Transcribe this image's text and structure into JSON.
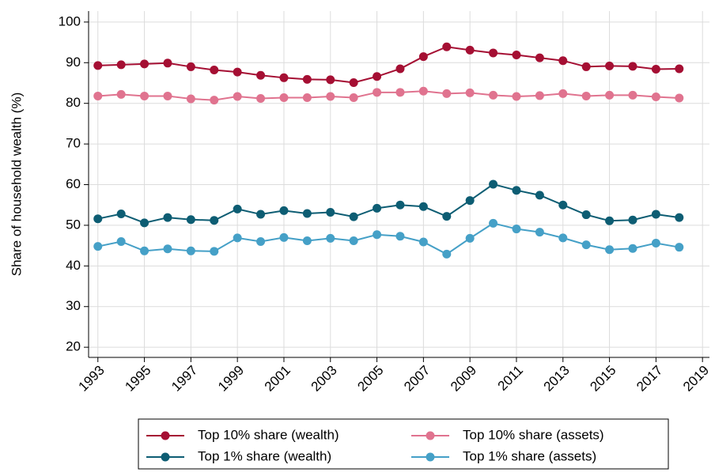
{
  "chart_data": {
    "type": "line",
    "y_label": "Share of household wealth (%)",
    "x": [
      1993,
      1994,
      1995,
      1996,
      1997,
      1998,
      1999,
      2000,
      2001,
      2002,
      2003,
      2004,
      2005,
      2006,
      2007,
      2008,
      2009,
      2010,
      2011,
      2012,
      2013,
      2014,
      2015,
      2016,
      2017,
      2018
    ],
    "series": [
      {
        "name": "Top 10% share (wealth)",
        "color": "#a50f33",
        "values": [
          89.3,
          89.5,
          89.7,
          89.9,
          89.0,
          88.2,
          87.7,
          86.9,
          86.3,
          85.9,
          85.8,
          85.1,
          86.6,
          88.5,
          91.5,
          93.9,
          93.1,
          92.4,
          91.9,
          91.2,
          90.5,
          89.0,
          89.2,
          89.1,
          88.4,
          88.5
        ]
      },
      {
        "name": "Top 10% share (assets)",
        "color": "#e0738f",
        "values": [
          81.8,
          82.2,
          81.8,
          81.8,
          81.1,
          80.8,
          81.7,
          81.2,
          81.4,
          81.4,
          81.7,
          81.4,
          82.7,
          82.7,
          83.0,
          82.4,
          82.6,
          82.0,
          81.7,
          81.9,
          82.4,
          81.8,
          82.0,
          82.0,
          81.6,
          81.3
        ]
      },
      {
        "name": "Top 1% share (wealth)",
        "color": "#0d5d73",
        "values": [
          51.6,
          52.8,
          50.6,
          51.9,
          51.4,
          51.2,
          54.0,
          52.7,
          53.6,
          52.9,
          53.2,
          52.1,
          54.2,
          55.0,
          54.6,
          52.2,
          56.1,
          60.1,
          58.6,
          57.4,
          55.0,
          52.6,
          51.1,
          51.3,
          52.7,
          51.9
        ]
      },
      {
        "name": "Top 1% share (assets)",
        "color": "#45a0c7",
        "values": [
          44.8,
          46.0,
          43.7,
          44.2,
          43.7,
          43.6,
          46.9,
          46.0,
          47.0,
          46.2,
          46.8,
          46.2,
          47.7,
          47.3,
          45.9,
          42.9,
          46.8,
          50.5,
          49.1,
          48.3,
          46.9,
          45.2,
          44.0,
          44.3,
          45.6,
          44.6
        ]
      }
    ],
    "xlim": [
      1992.6,
      2019.3
    ],
    "xticks": [
      1993,
      1995,
      1997,
      1999,
      2001,
      2003,
      2005,
      2007,
      2009,
      2011,
      2013,
      2015,
      2017,
      2019
    ],
    "ylim": [
      17.5,
      102.7
    ],
    "yticks": [
      20,
      30,
      40,
      50,
      60,
      70,
      80,
      90,
      100
    ],
    "grid": true,
    "legend": "bottom"
  }
}
